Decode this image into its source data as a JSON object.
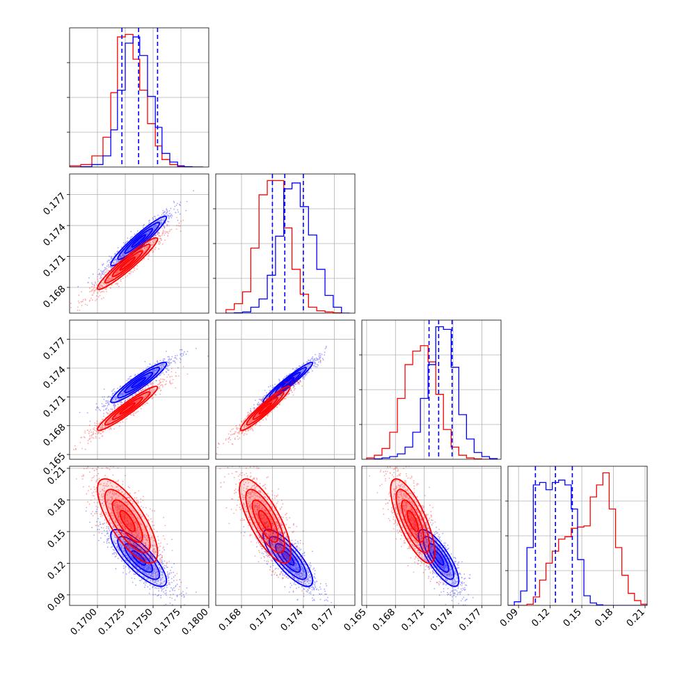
{
  "chart_data": {
    "type": "corner",
    "title": "",
    "parameters": [
      "",
      "",
      "",
      ""
    ],
    "colors": {
      "blue": "#0000ff",
      "red": "#ff0000"
    },
    "grid": true,
    "axes": {
      "p0": {
        "lim": [
          0.1675,
          0.18
        ],
        "ticks": [
          "0.1700",
          "0.1725",
          "0.1750",
          "0.1775",
          "0.1800"
        ]
      },
      "p1": {
        "lim": [
          0.1655,
          0.179
        ],
        "ticks": [
          "0.168",
          "0.171",
          "0.174",
          "0.177"
        ]
      },
      "p2": {
        "lim": [
          0.1645,
          0.179
        ],
        "ticks": [
          "0.165",
          "0.168",
          "0.171",
          "0.174",
          "0.177"
        ]
      },
      "p3": {
        "lim": [
          0.08,
          0.212
        ],
        "ticks": [
          "0.09",
          "0.12",
          "0.15",
          "0.18",
          "0.21"
        ]
      }
    },
    "quantiles": {
      "blue": {
        "p0": [
          0.1722,
          0.1737,
          0.1754
        ],
        "p1": [
          0.171,
          0.1722,
          0.174
        ],
        "p2": [
          0.1715,
          0.1725,
          0.1739
        ],
        "p3": [
          0.106,
          0.125,
          0.141
        ]
      }
    },
    "histograms_1d": [
      {
        "param": "p0",
        "series": [
          {
            "color": "blue",
            "edges": [
              0.1675,
              0.1685,
              0.1695,
              0.1705,
              0.1712,
              0.1718,
              0.1725,
              0.1732,
              0.1738,
              0.1745,
              0.1752,
              0.1758,
              0.1765,
              0.1772,
              0.1778,
              0.1785,
              0.1795
            ],
            "counts": [
              0,
              0.3,
              2,
              9,
              30,
              62,
              100,
              105,
              90,
              57,
              32,
              11,
              4,
              1,
              0.3,
              0
            ]
          },
          {
            "color": "red",
            "edges": [
              0.1675,
              0.1685,
              0.1695,
              0.1705,
              0.1712,
              0.1718,
              0.1725,
              0.1732,
              0.1738,
              0.1745,
              0.1752,
              0.1758,
              0.1765,
              0.1772,
              0.1778,
              0.1785,
              0.1795
            ],
            "counts": [
              1,
              2,
              9,
              24,
              60,
              105,
              107,
              87,
              62,
              35,
              17,
              6,
              2,
              0.5,
              0.2,
              0
            ]
          }
        ]
      },
      {
        "param": "p1",
        "series": [
          {
            "color": "blue",
            "edges": [
              0.1665,
              0.1673,
              0.1681,
              0.1689,
              0.1697,
              0.1705,
              0.1713,
              0.1721,
              0.1729,
              0.1737,
              0.1745,
              0.1753,
              0.1761,
              0.1769,
              0.1777,
              0.1785
            ],
            "counts": [
              0,
              0.3,
              1,
              5,
              12,
              32,
              65,
              105,
              110,
              90,
              66,
              37,
              15,
              5,
              0
            ]
          },
          {
            "color": "red",
            "edges": [
              0.1665,
              0.1673,
              0.1681,
              0.1689,
              0.1697,
              0.1705,
              0.1713,
              0.1721,
              0.1729,
              0.1737,
              0.1745,
              0.1753,
              0.1761,
              0.1769,
              0.1777,
              0.1785
            ],
            "counts": [
              3,
              8,
              18,
              55,
              100,
              112,
              112,
              72,
              37,
              16,
              5,
              2,
              1,
              0.3,
              0
            ]
          }
        ]
      },
      {
        "param": "p2",
        "series": [
          {
            "color": "blue",
            "edges": [
              0.165,
              0.1658,
              0.1666,
              0.1674,
              0.1682,
              0.169,
              0.1698,
              0.1706,
              0.1714,
              0.1722,
              0.173,
              0.1738,
              0.1746,
              0.1754,
              0.1762,
              0.177,
              0.1778,
              0.1786
            ],
            "counts": [
              0,
              0.3,
              1,
              2,
              4,
              9,
              20,
              45,
              70,
              98,
              96,
              68,
              33,
              15,
              5,
              2,
              0.5
            ]
          },
          {
            "color": "red",
            "edges": [
              0.165,
              0.1658,
              0.1666,
              0.1674,
              0.1682,
              0.169,
              0.1698,
              0.1706,
              0.1714,
              0.1722,
              0.173,
              0.1738,
              0.1746,
              0.1754,
              0.1762,
              0.177,
              0.1778,
              0.1786
            ],
            "counts": [
              1,
              3,
              8,
              20,
              45,
              70,
              80,
              84,
              72,
              48,
              22,
              9,
              3,
              1,
              0.3,
              0,
              0
            ]
          }
        ]
      },
      {
        "param": "p3",
        "series": [
          {
            "color": "blue",
            "edges": [
              0.08,
              0.086,
              0.092,
              0.098,
              0.104,
              0.11,
              0.116,
              0.122,
              0.128,
              0.134,
              0.14,
              0.146,
              0.152,
              0.158,
              0.164,
              0.17,
              0.176,
              0.182,
              0.188,
              0.194,
              0.2,
              0.206,
              0.212
            ],
            "counts": [
              0,
              3,
              12,
              48,
              100,
              102,
              96,
              102,
              104,
              100,
              80,
              38,
              8,
              2,
              0.5,
              0,
              0,
              0,
              0,
              0,
              0,
              0
            ]
          },
          {
            "color": "red",
            "edges": [
              0.08,
              0.086,
              0.092,
              0.098,
              0.104,
              0.11,
              0.116,
              0.122,
              0.128,
              0.134,
              0.14,
              0.146,
              0.152,
              0.158,
              0.164,
              0.17,
              0.176,
              0.182,
              0.188,
              0.194,
              0.2,
              0.206,
              0.212
            ],
            "counts": [
              0,
              0,
              0,
              1,
              7,
              21,
              35,
              45,
              55,
              57,
              64,
              65,
              66,
              90,
              100,
              110,
              80,
              48,
              25,
              10,
              4,
              1
            ]
          }
        ]
      }
    ],
    "scatter_2d": [
      {
        "x": "p0",
        "y": "p1",
        "series": [
          {
            "color": "blue",
            "mean": [
              0.1737,
              0.1725
            ],
            "sd": [
              0.00125,
              0.0012
            ],
            "corr": 0.95
          },
          {
            "color": "red",
            "mean": [
              0.1727,
              0.1703
            ],
            "sd": [
              0.00135,
              0.00125
            ],
            "corr": 0.95
          }
        ]
      },
      {
        "x": "p0",
        "y": "p2",
        "series": [
          {
            "color": "blue",
            "mean": [
              0.1737,
              0.1725
            ],
            "sd": [
              0.00125,
              0.00105
            ],
            "corr": 0.93
          },
          {
            "color": "red",
            "mean": [
              0.1727,
              0.1698
            ],
            "sd": [
              0.00135,
              0.00115
            ],
            "corr": 0.95
          }
        ]
      },
      {
        "x": "p1",
        "y": "p2",
        "series": [
          {
            "color": "blue",
            "mean": [
              0.1725,
              0.1725
            ],
            "sd": [
              0.0012,
              0.00105
            ],
            "corr": 0.96
          },
          {
            "color": "red",
            "mean": [
              0.1703,
              0.1698
            ],
            "sd": [
              0.0012,
              0.00115
            ],
            "corr": 0.95
          }
        ]
      },
      {
        "x": "p0",
        "y": "p3",
        "series": [
          {
            "color": "blue",
            "mean": [
              0.1737,
              0.125
            ],
            "sd": [
              0.00125,
              0.0135
            ],
            "corr": -0.8
          },
          {
            "color": "red",
            "mean": [
              0.1727,
              0.16
            ],
            "sd": [
              0.00135,
              0.02
            ],
            "corr": -0.75
          }
        ]
      },
      {
        "x": "p1",
        "y": "p3",
        "series": [
          {
            "color": "blue",
            "mean": [
              0.1725,
              0.125
            ],
            "sd": [
              0.0012,
              0.0135
            ],
            "corr": -0.8
          },
          {
            "color": "red",
            "mean": [
              0.1703,
              0.16
            ],
            "sd": [
              0.00125,
              0.02
            ],
            "corr": -0.75
          }
        ]
      },
      {
        "x": "p2",
        "y": "p3",
        "series": [
          {
            "color": "blue",
            "mean": [
              0.1725,
              0.125
            ],
            "sd": [
              0.00105,
              0.0135
            ],
            "corr": -0.8
          },
          {
            "color": "red",
            "mean": [
              0.1698,
              0.16
            ],
            "sd": [
              0.00115,
              0.02
            ],
            "corr": -0.75
          }
        ]
      }
    ]
  }
}
